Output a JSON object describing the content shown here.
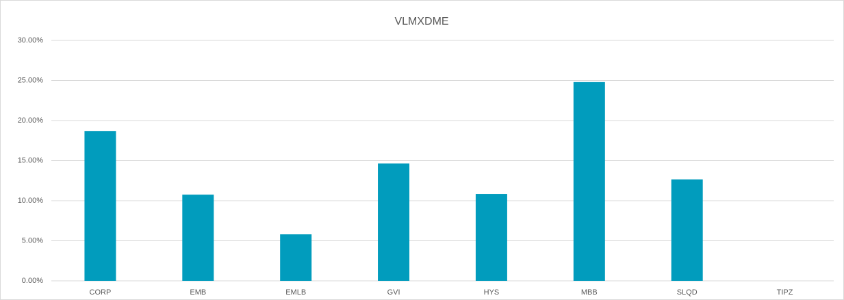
{
  "chart_data": {
    "type": "bar",
    "title": "VLMXDME",
    "categories": [
      "CORP",
      "EMB",
      "EMLB",
      "GVI",
      "HYS",
      "MBB",
      "SLQD",
      "TIPZ"
    ],
    "values": [
      18.7,
      10.75,
      5.8,
      14.65,
      10.85,
      24.8,
      12.65,
      0
    ],
    "color": "#019cbd",
    "ylim": [
      0,
      30
    ],
    "yticks": [
      {
        "value": 0,
        "label": "0.00%"
      },
      {
        "value": 5,
        "label": "5.00%"
      },
      {
        "value": 10,
        "label": "10.00%"
      },
      {
        "value": 15,
        "label": "15.00%"
      },
      {
        "value": 20,
        "label": "20.00%"
      },
      {
        "value": 25,
        "label": "25.00%"
      },
      {
        "value": 30,
        "label": "30.00%"
      }
    ],
    "grid": true
  }
}
